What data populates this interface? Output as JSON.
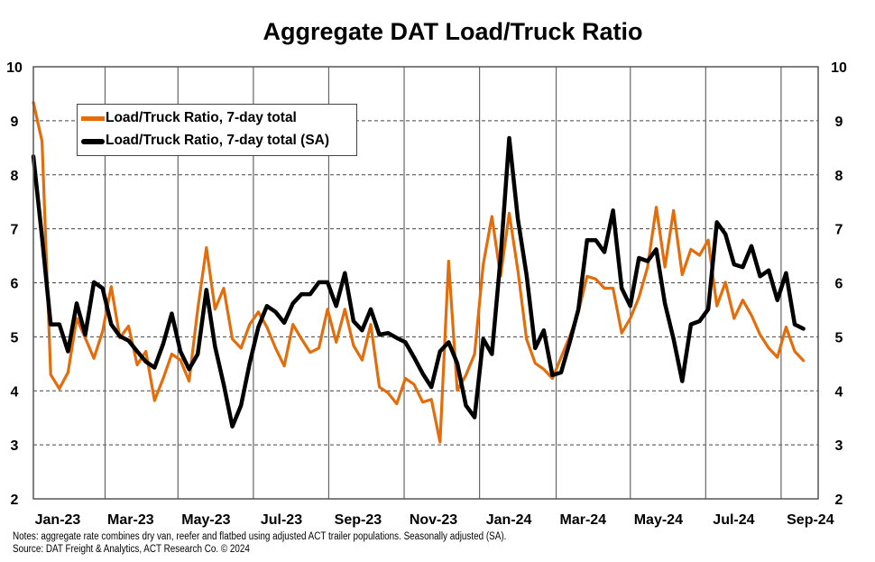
{
  "chart_data": {
    "type": "line",
    "title": "Aggregate DAT Load/Truck Ratio",
    "xlabel": "",
    "ylabel": "",
    "ylim": [
      2,
      10
    ],
    "y_ticks": [
      2,
      3,
      4,
      5,
      6,
      7,
      8,
      9,
      10
    ],
    "y_axes": "left and right (mirrored)",
    "xlim": [
      "2022-12-05",
      "2024-08-31"
    ],
    "x_tick_labels": [
      {
        "label": "Jan-23",
        "month": "2023-01"
      },
      {
        "label": "Mar-23",
        "month": "2023-03"
      },
      {
        "label": "May-23",
        "month": "2023-05"
      },
      {
        "label": "Jul-23",
        "month": "2023-07"
      },
      {
        "label": "Sep-23",
        "month": "2023-09"
      },
      {
        "label": "Nov-23",
        "month": "2023-11"
      },
      {
        "label": "Jan-24",
        "month": "2024-01"
      },
      {
        "label": "Mar-24",
        "month": "2024-03"
      },
      {
        "label": "May-24",
        "month": "2024-05"
      },
      {
        "label": "Jul-24",
        "month": "2024-07"
      },
      {
        "label": "Sep-24",
        "month": "2024-09"
      }
    ],
    "vertical_gridlines": [
      "2023-02-01",
      "2023-04-01",
      "2023-06-01",
      "2023-08-01",
      "2023-10-01",
      "2023-12-01",
      "2024-02-01",
      "2024-04-01",
      "2024-06-01",
      "2024-08-01"
    ],
    "grid": "horizontal dashed, vertical solid",
    "legend_position": "top-left",
    "dates": [
      "2022-12-05",
      "2022-12-12",
      "2022-12-19",
      "2022-12-26",
      "2023-01-02",
      "2023-01-09",
      "2023-01-16",
      "2023-01-23",
      "2023-01-30",
      "2023-02-06",
      "2023-02-13",
      "2023-02-20",
      "2023-02-27",
      "2023-03-06",
      "2023-03-13",
      "2023-03-20",
      "2023-03-27",
      "2023-04-03",
      "2023-04-10",
      "2023-04-17",
      "2023-04-24",
      "2023-05-01",
      "2023-05-08",
      "2023-05-15",
      "2023-05-22",
      "2023-05-29",
      "2023-06-05",
      "2023-06-12",
      "2023-06-19",
      "2023-06-26",
      "2023-07-03",
      "2023-07-10",
      "2023-07-17",
      "2023-07-24",
      "2023-07-31",
      "2023-08-07",
      "2023-08-14",
      "2023-08-21",
      "2023-08-28",
      "2023-09-04",
      "2023-09-11",
      "2023-09-18",
      "2023-09-25",
      "2023-10-02",
      "2023-10-09",
      "2023-10-16",
      "2023-10-23",
      "2023-10-30",
      "2023-11-06",
      "2023-11-13",
      "2023-11-20",
      "2023-11-27",
      "2023-12-04",
      "2023-12-11",
      "2023-12-18",
      "2023-12-25",
      "2024-01-01",
      "2024-01-08",
      "2024-01-15",
      "2024-01-22",
      "2024-01-29",
      "2024-02-05",
      "2024-02-12",
      "2024-02-19",
      "2024-02-26",
      "2024-03-04",
      "2024-03-11",
      "2024-03-18",
      "2024-03-25",
      "2024-04-01",
      "2024-04-08",
      "2024-04-15",
      "2024-04-22",
      "2024-04-29",
      "2024-05-06",
      "2024-05-13",
      "2024-05-20",
      "2024-05-27",
      "2024-06-03",
      "2024-06-10",
      "2024-06-17",
      "2024-06-24",
      "2024-07-01",
      "2024-07-08",
      "2024-07-15",
      "2024-07-22",
      "2024-07-29",
      "2024-08-05",
      "2024-08-12",
      "2024-08-19"
    ],
    "series": [
      {
        "name": "Load/Truck Ratio, 7-day total",
        "color": "#E46C0A",
        "values": [
          9.34,
          8.62,
          4.3,
          4.04,
          4.34,
          5.34,
          4.98,
          4.6,
          5.1,
          5.93,
          4.98,
          5.2,
          4.48,
          4.73,
          3.82,
          4.23,
          4.68,
          4.57,
          4.18,
          5.51,
          6.65,
          5.51,
          5.9,
          4.96,
          4.79,
          5.23,
          5.46,
          5.18,
          4.79,
          4.46,
          5.23,
          4.96,
          4.71,
          4.79,
          5.51,
          4.9,
          5.51,
          4.84,
          4.57,
          5.23,
          4.07,
          3.96,
          3.76,
          4.23,
          4.12,
          3.79,
          3.84,
          3.05,
          6.4,
          4.01,
          4.29,
          4.68,
          6.34,
          7.23,
          6.12,
          7.29,
          6.23,
          4.96,
          4.51,
          4.4,
          4.23,
          4.62,
          5.01,
          5.46,
          6.12,
          6.07,
          5.9,
          5.9,
          5.07,
          5.34,
          5.73,
          6.29,
          7.4,
          6.29,
          7.34,
          6.15,
          6.62,
          6.51,
          6.79,
          5.57,
          6.01,
          5.34,
          5.68,
          5.4,
          5.04,
          4.79,
          4.62,
          5.18,
          4.73,
          4.56
        ]
      },
      {
        "name": "Load/Truck Ratio, 7-day total (SA)",
        "color": "#000000",
        "values": [
          8.34,
          6.84,
          5.23,
          5.23,
          4.73,
          5.62,
          5.04,
          6.01,
          5.9,
          5.23,
          5.01,
          4.93,
          4.73,
          4.54,
          4.43,
          4.87,
          5.43,
          4.73,
          4.4,
          4.68,
          5.87,
          4.82,
          4.12,
          3.34,
          3.73,
          4.51,
          5.18,
          5.57,
          5.46,
          5.26,
          5.62,
          5.79,
          5.79,
          6.01,
          6.01,
          5.57,
          6.18,
          5.29,
          5.12,
          5.51,
          5.04,
          5.07,
          4.98,
          4.9,
          4.62,
          4.32,
          4.07,
          4.73,
          4.9,
          4.51,
          3.73,
          3.51,
          4.96,
          4.68,
          6.46,
          8.68,
          7.18,
          6.15,
          4.79,
          5.12,
          4.29,
          4.34,
          4.9,
          5.51,
          6.79,
          6.79,
          6.57,
          7.34,
          5.9,
          5.57,
          6.46,
          6.4,
          6.62,
          5.62,
          4.96,
          4.18,
          5.23,
          5.29,
          5.51,
          7.12,
          6.9,
          6.34,
          6.29,
          6.68,
          6.12,
          6.23,
          5.68,
          6.18,
          5.23,
          5.15
        ]
      }
    ]
  },
  "notes": {
    "line1": "Notes: aggregate rate combines dry van, reefer and flatbed using adjusted ACT trailer populations. Seasonally adjusted (SA).",
    "line2": "Source: DAT Freight & Analytics, ACT Research Co. © 2024"
  }
}
